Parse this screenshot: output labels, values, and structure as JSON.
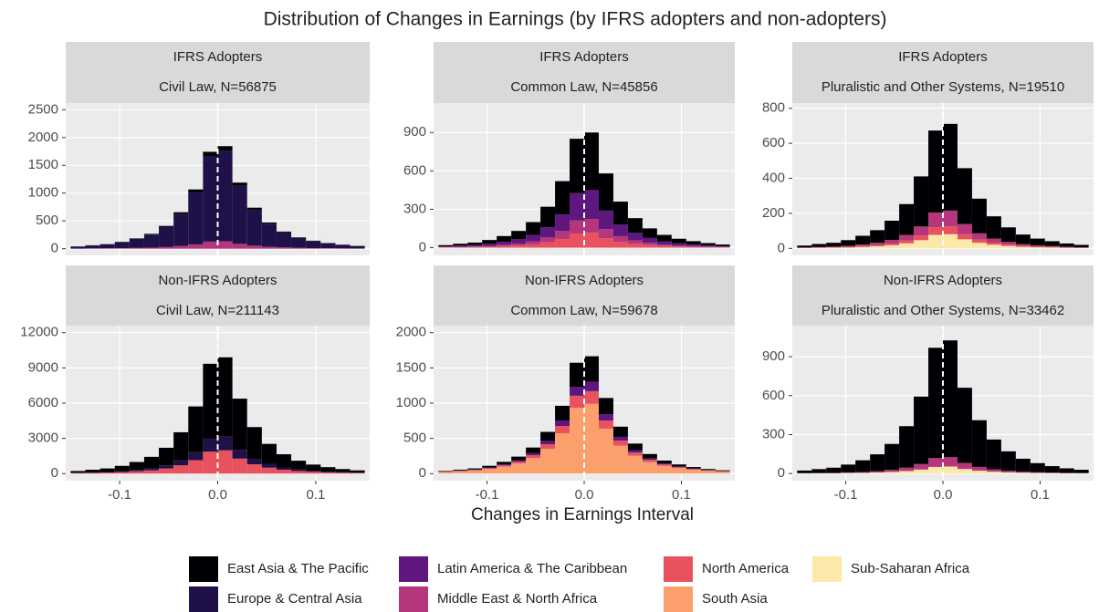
{
  "title": "Distribution of Changes in Earnings (by IFRS adopters and non-adopters)",
  "x_label": "Changes in Earnings Interval",
  "legend": [
    {
      "name": "East Asia & The Pacific",
      "color": "#000004"
    },
    {
      "name": "Europe & Central Asia",
      "color": "#1f1148"
    },
    {
      "name": "Latin America & The Caribbean",
      "color": "#5d177f"
    },
    {
      "name": "Middle East & North Africa",
      "color": "#b5367a"
    },
    {
      "name": "North America",
      "color": "#e8525f"
    },
    {
      "name": "South Asia",
      "color": "#fb9f6d"
    },
    {
      "name": "Sub-Saharan Africa",
      "color": "#fce8a8"
    }
  ],
  "stack_order": [
    "Sub-Saharan Africa",
    "South Asia",
    "North America",
    "Middle East & North Africa",
    "Latin America & The Caribbean",
    "Europe & Central Asia",
    "East Asia & The Pacific"
  ],
  "chart_data": [
    {
      "type": "histogram",
      "header": "IFRS Adopters",
      "subtitle": "Civil Law, N=56875",
      "bins": [
        -0.15,
        -0.135,
        -0.12,
        -0.105,
        -0.09,
        -0.075,
        -0.06,
        -0.045,
        -0.03,
        -0.015,
        0,
        0.015,
        0.03,
        0.045,
        0.06,
        0.075,
        0.09,
        0.105,
        0.12,
        0.135,
        0.15
      ],
      "xlim": [
        -0.155,
        0.155
      ],
      "xticks": [
        -0.1,
        {
          "value": 0,
          "label": "0.0"
        },
        0.1
      ],
      "ylim": [
        -120,
        2620
      ],
      "yticks": [
        0,
        500,
        1000,
        1500,
        2000,
        2500
      ],
      "reference_line": 0,
      "series": [
        {
          "name": "Europe & Central Asia",
          "values": [
            36,
            54,
            72,
            108,
            162,
            234,
            360,
            576,
            936,
            1530,
            1620,
            1044,
            648,
            414,
            270,
            180,
            126,
            90,
            63,
            45
          ]
        },
        {
          "name": "Middle East & North Africa",
          "values": [
            3,
            5,
            6,
            9,
            14,
            20,
            30,
            48,
            78,
            128,
            135,
            87,
            54,
            35,
            23,
            15,
            11,
            8,
            5,
            4
          ]
        },
        {
          "name": "East Asia & The Pacific",
          "values": [
            2,
            3,
            4,
            6,
            9,
            13,
            20,
            32,
            52,
            85,
            90,
            58,
            36,
            23,
            15,
            10,
            7,
            5,
            4,
            3
          ]
        }
      ]
    },
    {
      "type": "histogram",
      "header": "IFRS Adopters",
      "subtitle": "Common Law, N=45856",
      "bins": [
        -0.15,
        -0.135,
        -0.12,
        -0.105,
        -0.09,
        -0.075,
        -0.06,
        -0.045,
        -0.03,
        -0.015,
        0,
        0.015,
        0.03,
        0.045,
        0.06,
        0.075,
        0.09,
        0.105,
        0.12,
        0.135,
        0.15
      ],
      "xlim": [
        -0.155,
        0.155
      ],
      "xticks": [
        -0.1,
        {
          "value": 0,
          "label": "0.0"
        },
        0.1
      ],
      "ylim": [
        -60,
        1130
      ],
      "yticks": [
        0,
        300,
        600,
        900
      ],
      "reference_line": 0,
      "series": [
        {
          "name": "East Asia & The Pacific",
          "values": [
            10,
            15,
            20,
            30,
            45,
            65,
            100,
            160,
            260,
            425,
            450,
            290,
            180,
            115,
            75,
            50,
            35,
            25,
            18,
            13
          ]
        },
        {
          "name": "Latin America & The Caribbean",
          "values": [
            5,
            8,
            10,
            15,
            23,
            33,
            50,
            80,
            130,
            213,
            225,
            145,
            90,
            58,
            38,
            25,
            18,
            13,
            9,
            6
          ]
        },
        {
          "name": "Middle East & North Africa",
          "values": [
            2,
            4,
            5,
            7,
            11,
            16,
            24,
            38,
            62,
            102,
            108,
            70,
            43,
            28,
            18,
            12,
            8,
            6,
            4,
            3
          ]
        },
        {
          "name": "North America",
          "values": [
            3,
            4,
            5,
            8,
            12,
            17,
            26,
            42,
            68,
            111,
            117,
            75,
            47,
            30,
            20,
            13,
            9,
            7,
            5,
            3
          ]
        }
      ]
    },
    {
      "type": "histogram",
      "header": "IFRS Adopters",
      "subtitle": "Pluralistic and Other Systems, N=19510",
      "bins": [
        -0.15,
        -0.135,
        -0.12,
        -0.105,
        -0.09,
        -0.075,
        -0.06,
        -0.045,
        -0.03,
        -0.015,
        0,
        0.015,
        0.03,
        0.045,
        0.06,
        0.075,
        0.09,
        0.105,
        0.12,
        0.135,
        0.15
      ],
      "xlim": [
        -0.155,
        0.155
      ],
      "xticks": [
        -0.1,
        {
          "value": 0,
          "label": "0.0"
        },
        0.1
      ],
      "ylim": [
        -40,
        830
      ],
      "yticks": [
        0,
        200,
        400,
        600,
        800
      ],
      "reference_line": 0,
      "series": [
        {
          "name": "East Asia & The Pacific",
          "values": [
            11,
            17,
            22,
            33,
            50,
            72,
            110,
            176,
            286,
            468,
            495,
            319,
            198,
            127,
            83,
            55,
            39,
            28,
            19,
            14
          ]
        },
        {
          "name": "Middle East & North Africa",
          "values": [
            2,
            3,
            4,
            6,
            9,
            13,
            20,
            32,
            52,
            85,
            90,
            58,
            36,
            23,
            15,
            10,
            7,
            5,
            4,
            3
          ]
        },
        {
          "name": "North America",
          "values": [
            1,
            2,
            2,
            3,
            5,
            7,
            10,
            16,
            26,
            43,
            45,
            29,
            18,
            12,
            8,
            5,
            4,
            3,
            2,
            1
          ]
        },
        {
          "name": "Sub-Saharan Africa",
          "values": [
            2,
            3,
            4,
            5,
            8,
            12,
            18,
            29,
            47,
            77,
            81,
            52,
            32,
            21,
            14,
            9,
            6,
            5,
            3,
            2
          ]
        }
      ]
    },
    {
      "type": "histogram",
      "header": "Non-IFRS Adopters",
      "subtitle": "Civil Law, N=211143",
      "bins": [
        -0.15,
        -0.135,
        -0.12,
        -0.105,
        -0.09,
        -0.075,
        -0.06,
        -0.045,
        -0.03,
        -0.015,
        0,
        0.015,
        0.03,
        0.045,
        0.06,
        0.075,
        0.09,
        0.105,
        0.12,
        0.135,
        0.15
      ],
      "xlim": [
        -0.155,
        0.155
      ],
      "xticks": [
        -0.1,
        {
          "value": 0,
          "label": "0.0"
        },
        0.1
      ],
      "ylim": [
        -600,
        12600
      ],
      "yticks": [
        0,
        3000,
        6000,
        9000,
        12000
      ],
      "reference_line": 0,
      "series": [
        {
          "name": "East Asia & The Pacific",
          "values": [
            150,
            225,
            300,
            450,
            675,
            975,
            1500,
            2400,
            3900,
            6375,
            6750,
            4350,
            2700,
            1725,
            1125,
            750,
            525,
            375,
            263,
            188
          ]
        },
        {
          "name": "Europe & Central Asia",
          "values": [
            26,
            39,
            52,
            78,
            117,
            169,
            260,
            416,
            676,
            1105,
            1170,
            754,
            468,
            299,
            195,
            130,
            91,
            65,
            46,
            33
          ]
        },
        {
          "name": "North America",
          "values": [
            44,
            66,
            88,
            132,
            198,
            286,
            440,
            704,
            1144,
            1870,
            1980,
            1276,
            792,
            506,
            330,
            220,
            154,
            110,
            77,
            55
          ]
        }
      ]
    },
    {
      "type": "histogram",
      "header": "Non-IFRS Adopters",
      "subtitle": "Common Law, N=59678",
      "bins": [
        -0.15,
        -0.135,
        -0.12,
        -0.105,
        -0.09,
        -0.075,
        -0.06,
        -0.045,
        -0.03,
        -0.015,
        0,
        0.015,
        0.03,
        0.045,
        0.06,
        0.075,
        0.09,
        0.105,
        0.12,
        0.135,
        0.15
      ],
      "xlim": [
        -0.155,
        0.155
      ],
      "xticks": [
        -0.1,
        {
          "value": 0,
          "label": "0.0"
        },
        0.1
      ],
      "ylim": [
        -100,
        2100
      ],
      "yticks": [
        0,
        500,
        1000,
        1500,
        2000
      ],
      "reference_line": 0,
      "series": [
        {
          "name": "South Asia",
          "values": [
            22,
            33,
            44,
            66,
            99,
            143,
            220,
            352,
            572,
            935,
            990,
            638,
            396,
            253,
            165,
            110,
            77,
            55,
            39,
            28
          ]
        },
        {
          "name": "North America",
          "values": [
            4,
            6,
            8,
            12,
            18,
            26,
            40,
            64,
            104,
            170,
            180,
            116,
            72,
            46,
            30,
            20,
            14,
            10,
            7,
            5
          ]
        },
        {
          "name": "Latin America & The Caribbean",
          "values": [
            3,
            5,
            6,
            9,
            14,
            20,
            30,
            48,
            78,
            128,
            135,
            87,
            54,
            35,
            23,
            15,
            11,
            8,
            5,
            4
          ]
        },
        {
          "name": "East Asia & The Pacific",
          "values": [
            8,
            12,
            16,
            24,
            36,
            52,
            80,
            128,
            208,
            340,
            360,
            232,
            144,
            92,
            60,
            40,
            28,
            20,
            14,
            10
          ]
        }
      ]
    },
    {
      "type": "histogram",
      "header": "Non-IFRS Adopters",
      "subtitle": "Pluralistic and Other Systems, N=33462",
      "bins": [
        -0.15,
        -0.135,
        -0.12,
        -0.105,
        -0.09,
        -0.075,
        -0.06,
        -0.045,
        -0.03,
        -0.015,
        0,
        0.015,
        0.03,
        0.045,
        0.06,
        0.075,
        0.09,
        0.105,
        0.12,
        0.135,
        0.15
      ],
      "xlim": [
        -0.155,
        0.155
      ],
      "xticks": [
        -0.1,
        {
          "value": 0,
          "label": "0.0"
        },
        0.1
      ],
      "ylim": [
        -55,
        1140
      ],
      "yticks": [
        0,
        300,
        600,
        900
      ],
      "reference_line": 0,
      "series": [
        {
          "name": "East Asia & The Pacific",
          "values": [
            20,
            30,
            40,
            60,
            90,
            130,
            200,
            320,
            520,
            850,
            900,
            580,
            360,
            230,
            150,
            100,
            70,
            50,
            35,
            25
          ]
        },
        {
          "name": "Middle East & North Africa",
          "values": [
            2,
            2,
            3,
            5,
            7,
            10,
            16,
            26,
            42,
            68,
            72,
            46,
            29,
            18,
            12,
            8,
            6,
            4,
            3,
            2
          ]
        },
        {
          "name": "Sub-Saharan Africa",
          "values": [
            1,
            2,
            2,
            4,
            5,
            8,
            12,
            19,
            31,
            51,
            54,
            35,
            22,
            14,
            9,
            6,
            4,
            3,
            2,
            2
          ]
        }
      ]
    }
  ]
}
